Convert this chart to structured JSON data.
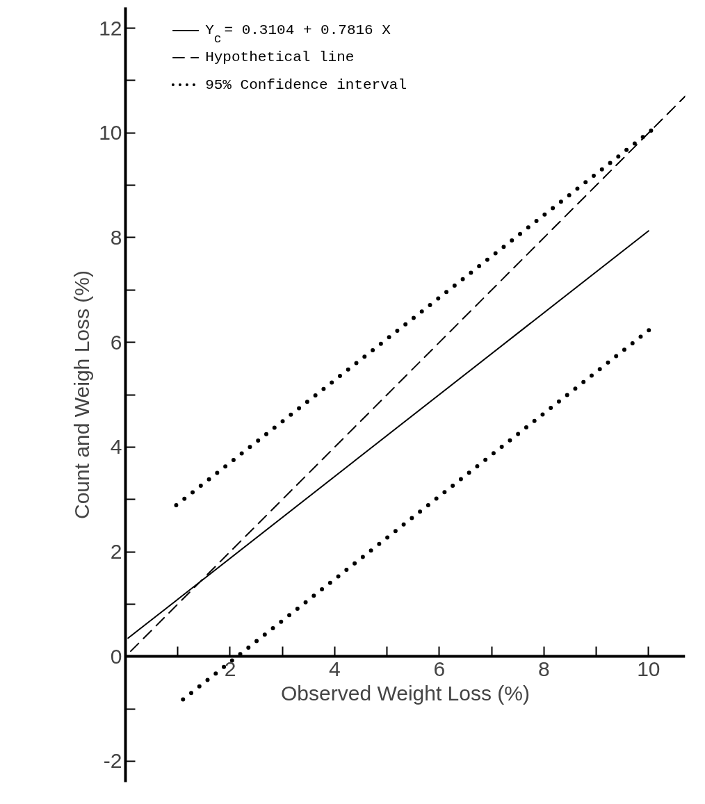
{
  "chart_data": {
    "type": "line",
    "xlabel": "Observed Weight Loss (%)",
    "ylabel": "Count and Weigh Loss (%)",
    "xlim": [
      0,
      10.7
    ],
    "ylim": [
      -2.4,
      12.4
    ],
    "xticks": [
      {
        "value": 1,
        "label": null
      },
      2,
      {
        "value": 3,
        "label": null
      },
      4,
      {
        "value": 5,
        "label": null
      },
      6,
      {
        "value": 7,
        "label": null
      },
      8,
      {
        "value": 9,
        "label": null
      },
      10
    ],
    "yticks": [
      -2,
      {
        "value": -1,
        "label": null
      },
      0,
      {
        "value": 1,
        "label": null
      },
      2,
      {
        "value": 3,
        "label": null
      },
      4,
      {
        "value": 5,
        "label": null
      },
      6,
      {
        "value": 7,
        "label": null
      },
      8,
      {
        "value": 9,
        "label": null
      },
      10,
      {
        "value": 11,
        "label": null
      },
      12
    ],
    "grid": false,
    "legend": "top left",
    "series": [
      {
        "name": "Y$_{c}$ = 0.3104 + 0.7816 X",
        "color": "#000000",
        "line_style": "solid",
        "x": [
          0.05,
          10
        ],
        "values": [
          0.35,
          8.13
        ]
      },
      {
        "name": "Hypothetical line",
        "color": "#000000",
        "line_style": "dashed",
        "x": [
          0.1,
          10.7
        ],
        "values": [
          0.1,
          10.7
        ]
      },
      {
        "name": "95% Confidence interval",
        "color": "#000000",
        "line_style": "dotted",
        "x": [
          0.97,
          10.08
        ],
        "values": [
          2.89,
          10.07
        ]
      },
      {
        "color": "#000000",
        "line_style": "dotted",
        "x": [
          1.1,
          10.08
        ],
        "values": [
          -0.82,
          6.29
        ]
      }
    ]
  }
}
